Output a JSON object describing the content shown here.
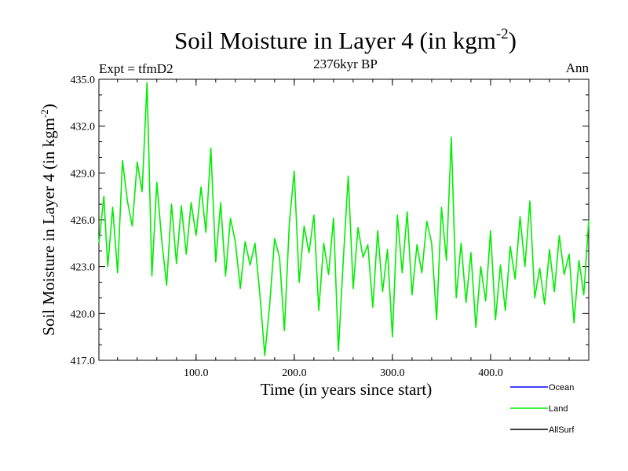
{
  "chart_data": {
    "type": "line",
    "title": "Soil Moisture in Layer 4 (in kgm",
    "title_superscript": "-2",
    "title_close": ")",
    "subtitle_left": "Expt = tfmD2",
    "subtitle_center": "2376kyr BP",
    "subtitle_right": "Ann",
    "xlabel": "Time (in years since start)",
    "ylabel": "Soil Moisture in Layer 4 (in kgm",
    "ylabel_superscript": "-2",
    "ylabel_close": ")",
    "xlim": [
      1,
      500
    ],
    "ylim": [
      417.0,
      435.0
    ],
    "x_ticks": [
      100,
      200,
      300,
      400
    ],
    "x_tick_labels": [
      "100.0",
      "200.0",
      "300.0",
      "400.0"
    ],
    "y_ticks": [
      417,
      420,
      423,
      426,
      429,
      432,
      435
    ],
    "y_tick_labels": [
      "417.0",
      "420.0",
      "423.0",
      "426.0",
      "429.0",
      "432.0",
      "435.0"
    ],
    "series": [
      {
        "name": "Ocean",
        "color": "#0000ff",
        "x": [],
        "values": []
      },
      {
        "name": "Land",
        "color": "#00ee00",
        "x": [
          1,
          6,
          10,
          15,
          20,
          25,
          30,
          35,
          40,
          45,
          50,
          55,
          60,
          65,
          70,
          75,
          80,
          85,
          90,
          95,
          100,
          105,
          110,
          115,
          120,
          125,
          130,
          135,
          140,
          145,
          150,
          155,
          160,
          165,
          170,
          175,
          180,
          185,
          190,
          195,
          200,
          205,
          210,
          215,
          220,
          225,
          230,
          235,
          240,
          245,
          250,
          255,
          260,
          265,
          270,
          275,
          280,
          285,
          290,
          295,
          300,
          305,
          310,
          315,
          320,
          325,
          330,
          335,
          340,
          345,
          350,
          355,
          360,
          365,
          370,
          375,
          380,
          385,
          390,
          395,
          400,
          405,
          410,
          415,
          420,
          425,
          430,
          435,
          440,
          445,
          450,
          455,
          460,
          465,
          470,
          475,
          480,
          485,
          490,
          495,
          500
        ],
        "values": [
          424.5,
          427.5,
          423.0,
          426.8,
          422.6,
          429.8,
          427.2,
          425.6,
          429.7,
          427.8,
          434.8,
          422.4,
          428.4,
          424.7,
          421.8,
          427.0,
          423.2,
          426.9,
          423.8,
          427.1,
          425.0,
          428.1,
          425.2,
          430.6,
          423.3,
          427.1,
          422.4,
          426.1,
          424.6,
          421.6,
          424.6,
          423.1,
          424.5,
          421.2,
          417.3,
          420.6,
          424.8,
          423.6,
          418.9,
          425.8,
          429.1,
          422.0,
          425.6,
          423.9,
          426.3,
          420.2,
          424.5,
          422.5,
          426.1,
          417.6,
          423.5,
          428.8,
          421.6,
          425.5,
          423.6,
          424.4,
          420.4,
          425.3,
          421.4,
          424.1,
          418.5,
          426.3,
          422.6,
          426.5,
          421.2,
          424.4,
          422.6,
          425.9,
          424.5,
          419.6,
          426.8,
          423.4,
          431.3,
          421.0,
          424.5,
          420.7,
          423.9,
          419.1,
          423.0,
          420.8,
          425.3,
          419.6,
          423.1,
          420.2,
          424.3,
          422.2,
          426.2,
          423.0,
          427.2,
          421.0,
          422.9,
          420.6,
          424.1,
          421.4,
          425.0,
          422.5,
          423.8,
          419.4,
          423.4,
          421.2,
          426.0
        ]
      },
      {
        "name": "AllSurf",
        "color": "#000000",
        "x": [],
        "values": []
      }
    ],
    "legend_position": "bottom-right"
  }
}
